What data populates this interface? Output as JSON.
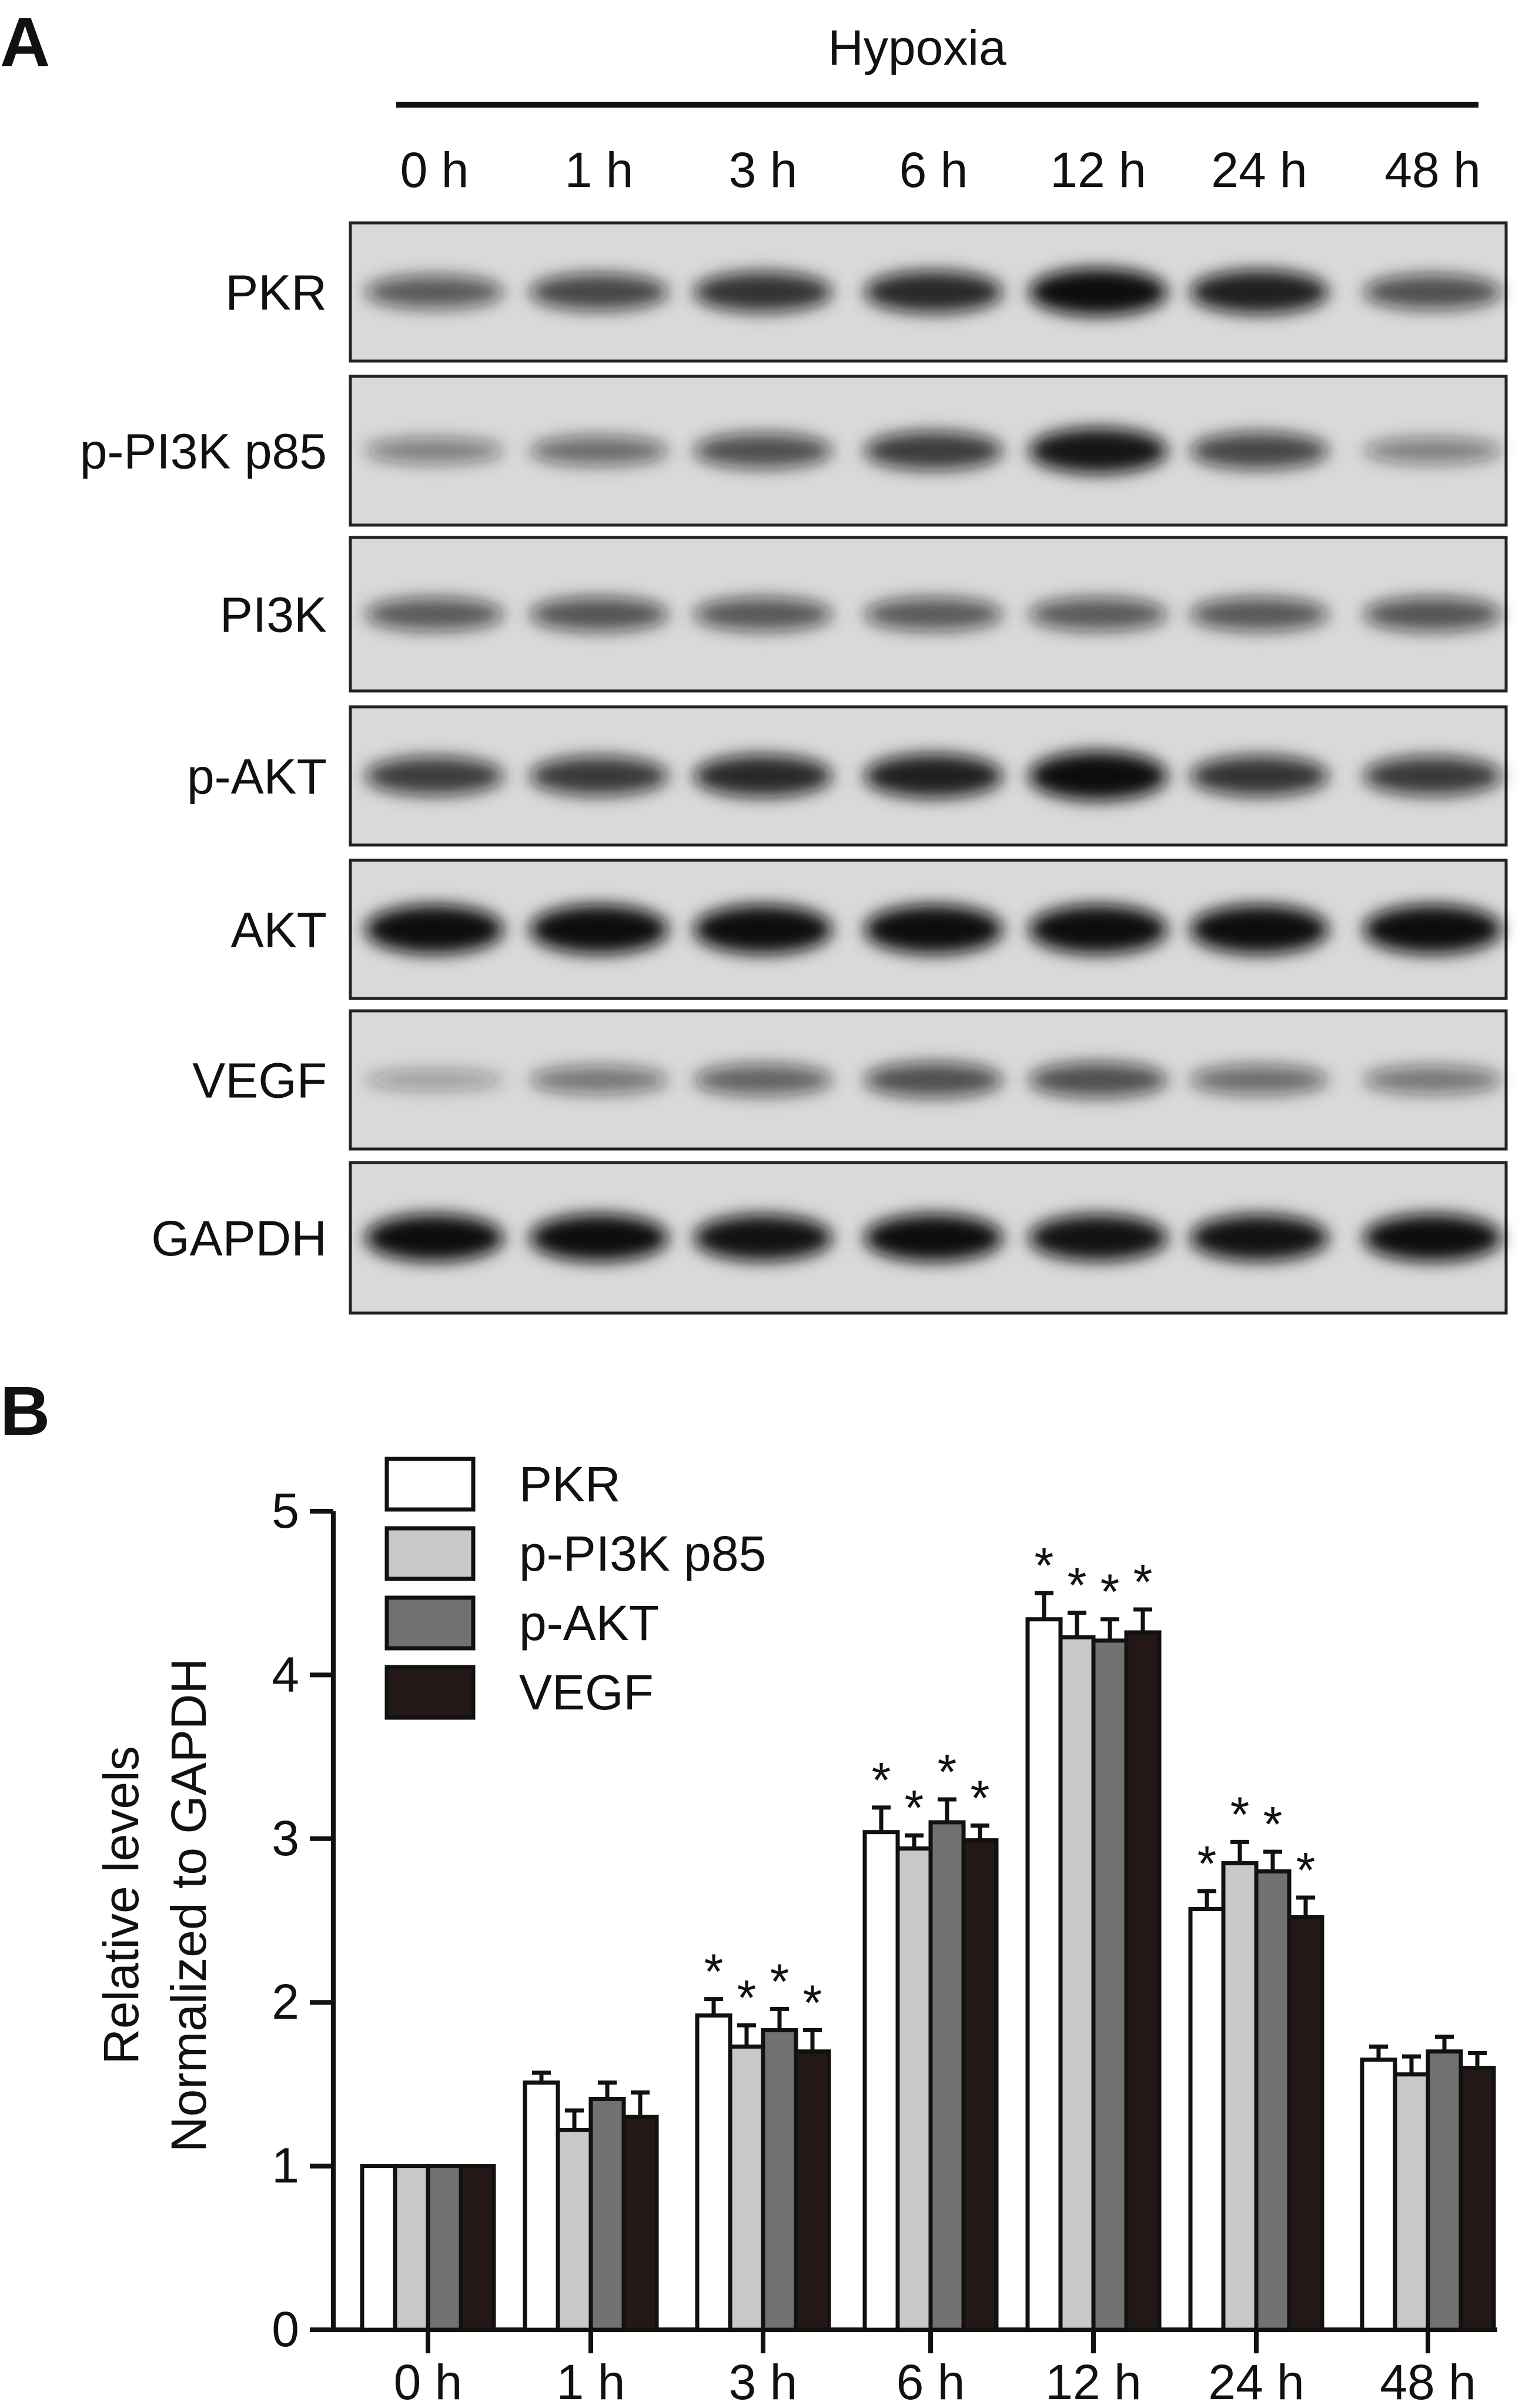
{
  "panel_a": {
    "label": "A",
    "condition": "Hypoxia",
    "lanes": [
      "0 h",
      "1 h",
      "3 h",
      "6 h",
      "12 h",
      "24 h",
      "48 h"
    ],
    "rows": [
      {
        "name": "PKR",
        "band_intensity": [
          0.55,
          0.65,
          0.75,
          0.8,
          0.95,
          0.85,
          0.6
        ]
      },
      {
        "name": "p-PI3K p85",
        "band_intensity": [
          0.35,
          0.45,
          0.6,
          0.7,
          0.9,
          0.65,
          0.35
        ]
      },
      {
        "name": "PI3K",
        "band_intensity": [
          0.55,
          0.58,
          0.56,
          0.55,
          0.55,
          0.56,
          0.58
        ]
      },
      {
        "name": "p-AKT",
        "band_intensity": [
          0.7,
          0.72,
          0.8,
          0.85,
          1.0,
          0.75,
          0.72
        ]
      },
      {
        "name": "AKT",
        "band_intensity": [
          1.0,
          1.0,
          1.0,
          1.0,
          1.0,
          1.0,
          1.0
        ]
      },
      {
        "name": "VEGF",
        "band_intensity": [
          0.2,
          0.4,
          0.5,
          0.6,
          0.6,
          0.45,
          0.4
        ]
      },
      {
        "name": "GAPDH",
        "band_intensity": [
          0.95,
          0.95,
          0.92,
          0.95,
          0.92,
          0.92,
          0.95
        ]
      }
    ]
  },
  "panel_b": {
    "label": "B"
  },
  "chart_data": {
    "type": "bar",
    "ylabel": [
      "Relative levels",
      "Normalized to GAPDH"
    ],
    "xlabel": "",
    "ylim": [
      0,
      5
    ],
    "yticks": [
      "0",
      "1",
      "2",
      "3",
      "4",
      "5"
    ],
    "categories": [
      "0 h",
      "1 h",
      "3 h",
      "6 h",
      "12 h",
      "24 h",
      "48 h"
    ],
    "legend_position": "top-left",
    "significance_marker": "*",
    "series": [
      {
        "name": "PKR",
        "color": "#ffffff",
        "values": [
          1.0,
          1.51,
          1.92,
          3.04,
          4.34,
          2.57,
          1.65
        ],
        "errors": [
          0,
          0.06,
          0.1,
          0.15,
          0.16,
          0.11,
          0.08
        ],
        "significant": [
          false,
          false,
          true,
          true,
          true,
          true,
          false
        ]
      },
      {
        "name": "p-PI3K p85",
        "color": "#c8c8c8",
        "values": [
          1.0,
          1.22,
          1.73,
          2.94,
          4.23,
          2.85,
          1.56
        ],
        "errors": [
          0,
          0.12,
          0.13,
          0.08,
          0.15,
          0.13,
          0.11
        ],
        "significant": [
          false,
          false,
          true,
          true,
          true,
          true,
          false
        ]
      },
      {
        "name": "p-AKT",
        "color": "#717171",
        "values": [
          1.0,
          1.41,
          1.83,
          3.1,
          4.21,
          2.8,
          1.7
        ],
        "errors": [
          0,
          0.1,
          0.13,
          0.14,
          0.13,
          0.12,
          0.09
        ],
        "significant": [
          false,
          false,
          true,
          true,
          true,
          true,
          false
        ]
      },
      {
        "name": "VEGF",
        "color": "#231816",
        "values": [
          1.0,
          1.3,
          1.7,
          2.99,
          4.26,
          2.52,
          1.6
        ],
        "errors": [
          0,
          0.15,
          0.13,
          0.09,
          0.14,
          0.12,
          0.09
        ],
        "significant": [
          false,
          false,
          true,
          true,
          true,
          true,
          false
        ]
      }
    ]
  }
}
